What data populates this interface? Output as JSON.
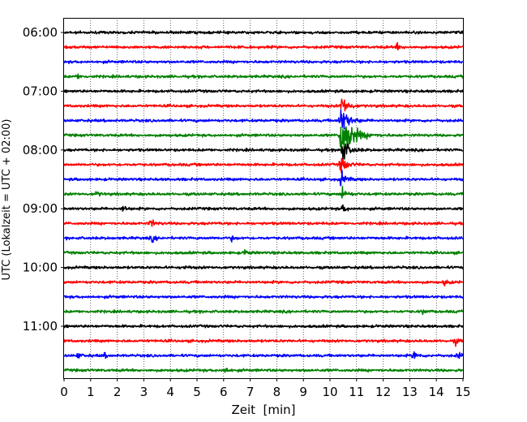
{
  "chart_data": {
    "type": "line",
    "title": "",
    "xlabel": "Zeit  [min]",
    "ylabel": "UTC (Lokalzeit = UTC + 02:00)",
    "xlim": [
      0,
      15
    ],
    "x_ticks": [
      0,
      1,
      2,
      3,
      4,
      5,
      6,
      7,
      8,
      9,
      10,
      11,
      12,
      13,
      14,
      15
    ],
    "y_tick_labels": [
      "06:00",
      "07:00",
      "08:00",
      "09:00",
      "10:00",
      "11:00"
    ],
    "y_tick_rows": [
      0,
      4,
      8,
      12,
      16,
      20
    ],
    "grid": "vertical dotted at each minute",
    "trace_colors": [
      "#000000",
      "#ff0000",
      "#0000ff",
      "#008000"
    ],
    "row_start_times": [
      "06:00",
      "06:15",
      "06:30",
      "06:45",
      "07:00",
      "07:15",
      "07:30",
      "07:45",
      "08:00",
      "08:15",
      "08:30",
      "08:45",
      "09:00",
      "09:15",
      "09:30",
      "09:45",
      "10:00",
      "10:15",
      "10:30",
      "10:45",
      "11:00",
      "11:15",
      "11:30",
      "11:45"
    ],
    "events": [
      {
        "row": 1,
        "minute": 12.5,
        "strength": 3
      },
      {
        "row": 3,
        "minute": 0.5,
        "strength": 2
      },
      {
        "row": 5,
        "minute": 10.45,
        "strength": 10
      },
      {
        "row": 6,
        "minute": 10.4,
        "strength": 14
      },
      {
        "row": 7,
        "minute": 10.4,
        "strength": 26
      },
      {
        "row": 8,
        "minute": 10.45,
        "strength": 12
      },
      {
        "row": 9,
        "minute": 10.4,
        "strength": 9
      },
      {
        "row": 10,
        "minute": 10.4,
        "strength": 7
      },
      {
        "row": 11,
        "minute": 10.45,
        "strength": 6
      },
      {
        "row": 11,
        "minute": 1.2,
        "strength": 2.5
      },
      {
        "row": 12,
        "minute": 2.2,
        "strength": 3
      },
      {
        "row": 12,
        "minute": 10.45,
        "strength": 4
      },
      {
        "row": 13,
        "minute": 3.25,
        "strength": 4
      },
      {
        "row": 14,
        "minute": 3.3,
        "strength": 3
      },
      {
        "row": 14,
        "minute": 6.3,
        "strength": 2
      },
      {
        "row": 15,
        "minute": 6.8,
        "strength": 2.5
      },
      {
        "row": 16,
        "minute": 4.5,
        "strength": 1.5
      },
      {
        "row": 17,
        "minute": 14.3,
        "strength": 2.5
      },
      {
        "row": 19,
        "minute": 13.5,
        "strength": 2
      },
      {
        "row": 21,
        "minute": 14.7,
        "strength": 3
      },
      {
        "row": 22,
        "minute": 0.5,
        "strength": 2.5
      },
      {
        "row": 22,
        "minute": 1.5,
        "strength": 2
      },
      {
        "row": 22,
        "minute": 13.15,
        "strength": 4
      },
      {
        "row": 22,
        "minute": 14.8,
        "strength": 3
      },
      {
        "row": 23,
        "minute": 6.05,
        "strength": 3
      }
    ]
  }
}
